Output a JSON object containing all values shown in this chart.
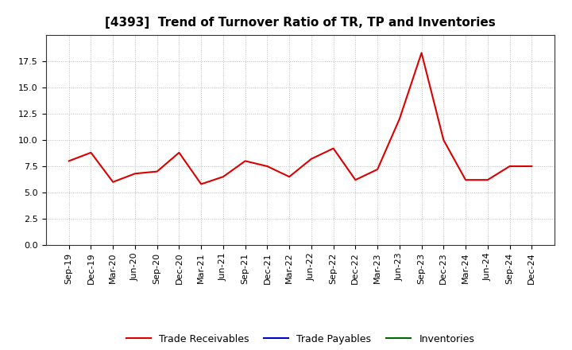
{
  "title": "[4393]  Trend of Turnover Ratio of TR, TP and Inventories",
  "x_labels": [
    "Sep-19",
    "Dec-19",
    "Mar-20",
    "Jun-20",
    "Sep-20",
    "Dec-20",
    "Mar-21",
    "Jun-21",
    "Sep-21",
    "Dec-21",
    "Mar-22",
    "Jun-22",
    "Sep-22",
    "Dec-22",
    "Mar-23",
    "Jun-23",
    "Sep-23",
    "Dec-23",
    "Mar-24",
    "Jun-24",
    "Sep-24",
    "Dec-24"
  ],
  "trade_receivables": [
    8.0,
    8.8,
    6.0,
    6.8,
    7.0,
    8.8,
    5.8,
    6.5,
    8.0,
    7.5,
    6.5,
    8.2,
    9.2,
    6.2,
    7.2,
    12.0,
    18.3,
    10.0,
    6.2,
    6.2,
    7.5,
    7.5
  ],
  "trade_payables": [
    null,
    null,
    null,
    null,
    null,
    null,
    null,
    null,
    null,
    null,
    null,
    null,
    null,
    null,
    null,
    null,
    null,
    null,
    null,
    null,
    null,
    null
  ],
  "inventories": [
    null,
    null,
    null,
    null,
    null,
    null,
    null,
    null,
    null,
    null,
    null,
    null,
    null,
    null,
    null,
    null,
    null,
    null,
    null,
    null,
    null,
    null
  ],
  "ylim": [
    0,
    20
  ],
  "yticks": [
    0.0,
    2.5,
    5.0,
    7.5,
    10.0,
    12.5,
    15.0,
    17.5
  ],
  "color_tr": "#dd0000",
  "color_tp": "#0000cc",
  "color_inv": "#006600",
  "background_color": "#ffffff",
  "grid_color": "#bbbbbb",
  "legend_labels": [
    "Trade Receivables",
    "Trade Payables",
    "Inventories"
  ],
  "title_fontsize": 11,
  "tick_fontsize": 8,
  "legend_fontsize": 9
}
